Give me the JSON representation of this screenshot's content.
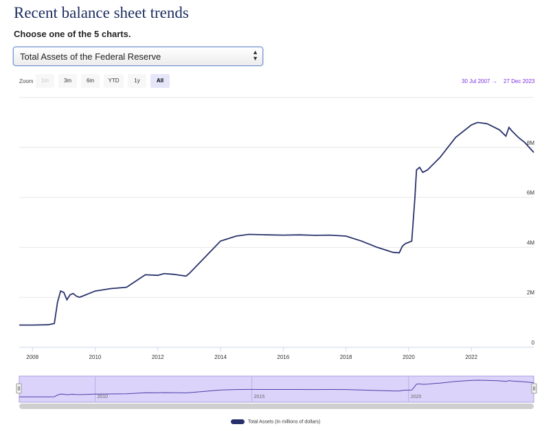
{
  "page": {
    "title": "Recent balance sheet trends",
    "subtitle": "Choose one of the 5 charts."
  },
  "selector": {
    "selected": "Total Assets of the Federal Reserve"
  },
  "zoom": {
    "label": "Zoom",
    "buttons": [
      {
        "label": "1m",
        "state": "disabled"
      },
      {
        "label": "3m",
        "state": "normal"
      },
      {
        "label": "6m",
        "state": "normal"
      },
      {
        "label": "YTD",
        "state": "normal"
      },
      {
        "label": "1y",
        "state": "normal"
      },
      {
        "label": "All",
        "state": "active"
      }
    ]
  },
  "range": {
    "from": "30 Jul 2007",
    "arrow": "→",
    "to": "27 Dec 2023"
  },
  "chart_data": {
    "type": "line",
    "xlabel": "",
    "ylabel": "",
    "xlim": [
      2007.58,
      2023.99
    ],
    "ylim": [
      0,
      10
    ],
    "y_ticks": [
      {
        "v": 0,
        "label": "0"
      },
      {
        "v": 2,
        "label": "2M"
      },
      {
        "v": 4,
        "label": "4M"
      },
      {
        "v": 6,
        "label": "6M"
      },
      {
        "v": 8,
        "label": "8M"
      }
    ],
    "x_ticks": [
      "2008",
      "2010",
      "2012",
      "2014",
      "2016",
      "2018",
      "2020",
      "2022"
    ],
    "line_color": "#27306a",
    "grid": true,
    "series": [
      {
        "name": "Total Assets (In millions of dollars)",
        "x": [
          2007.58,
          2008.0,
          2008.5,
          2008.7,
          2008.8,
          2008.9,
          2009.0,
          2009.1,
          2009.2,
          2009.3,
          2009.4,
          2009.5,
          2009.7,
          2010.0,
          2010.5,
          2011.0,
          2011.3,
          2011.6,
          2012.0,
          2012.2,
          2012.5,
          2012.9,
          2013.0,
          2013.5,
          2014.0,
          2014.5,
          2014.9,
          2015.5,
          2016.0,
          2016.5,
          2017.0,
          2017.5,
          2018.0,
          2018.5,
          2019.0,
          2019.5,
          2019.7,
          2019.8,
          2019.9,
          2020.0,
          2020.1,
          2020.2,
          2020.25,
          2020.35,
          2020.45,
          2020.6,
          2020.8,
          2021.0,
          2021.5,
          2022.0,
          2022.2,
          2022.5,
          2022.9,
          2023.1,
          2023.2,
          2023.3,
          2023.5,
          2023.7,
          2023.99
        ],
        "values": [
          0.89,
          0.89,
          0.9,
          0.95,
          1.8,
          2.25,
          2.2,
          1.9,
          2.1,
          2.15,
          2.05,
          2.0,
          2.1,
          2.25,
          2.35,
          2.4,
          2.65,
          2.9,
          2.88,
          2.95,
          2.92,
          2.85,
          2.95,
          3.6,
          4.25,
          4.45,
          4.52,
          4.5,
          4.49,
          4.5,
          4.48,
          4.49,
          4.45,
          4.25,
          4.0,
          3.8,
          3.78,
          4.05,
          4.15,
          4.2,
          4.25,
          6.0,
          7.1,
          7.2,
          7.0,
          7.1,
          7.35,
          7.6,
          8.4,
          8.9,
          9.0,
          8.95,
          8.7,
          8.45,
          8.8,
          8.65,
          8.4,
          8.2,
          7.8
        ]
      }
    ]
  },
  "navigator": {
    "labels": [
      "2010",
      "2015",
      "2020"
    ]
  },
  "legend": {
    "label": "Total Assets (In millions of dollars)"
  }
}
